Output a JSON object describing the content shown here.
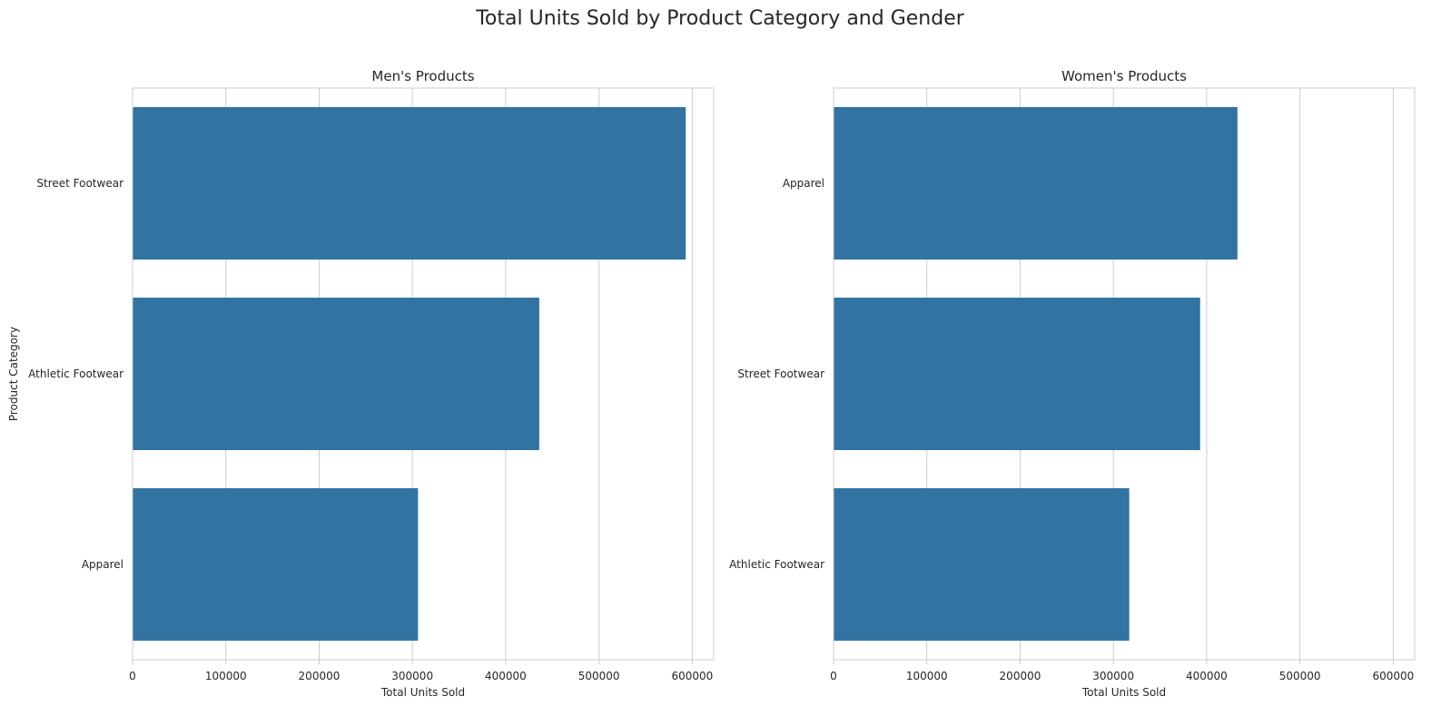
{
  "title": "Total Units Sold by Product Category and Gender",
  "chart_data": [
    {
      "type": "bar",
      "orientation": "horizontal",
      "title": "Men's Products",
      "xlabel": "Total Units Sold",
      "ylabel": "Product Category",
      "categories": [
        "Street Footwear",
        "Athletic Footwear",
        "Apparel"
      ],
      "values": [
        593000,
        436000,
        306000
      ],
      "xlim": [
        0,
        623000
      ],
      "xticks": [
        0,
        100000,
        200000,
        300000,
        400000,
        500000,
        600000
      ],
      "grid": true,
      "bar_color": "#3274a1"
    },
    {
      "type": "bar",
      "orientation": "horizontal",
      "title": "Women's Products",
      "xlabel": "Total Units Sold",
      "ylabel": "",
      "categories": [
        "Apparel",
        "Street Footwear",
        "Athletic Footwear"
      ],
      "values": [
        433000,
        393000,
        317000
      ],
      "xlim": [
        0,
        623000
      ],
      "xticks": [
        0,
        100000,
        200000,
        300000,
        400000,
        500000,
        600000
      ],
      "grid": true,
      "bar_color": "#3274a1"
    }
  ]
}
